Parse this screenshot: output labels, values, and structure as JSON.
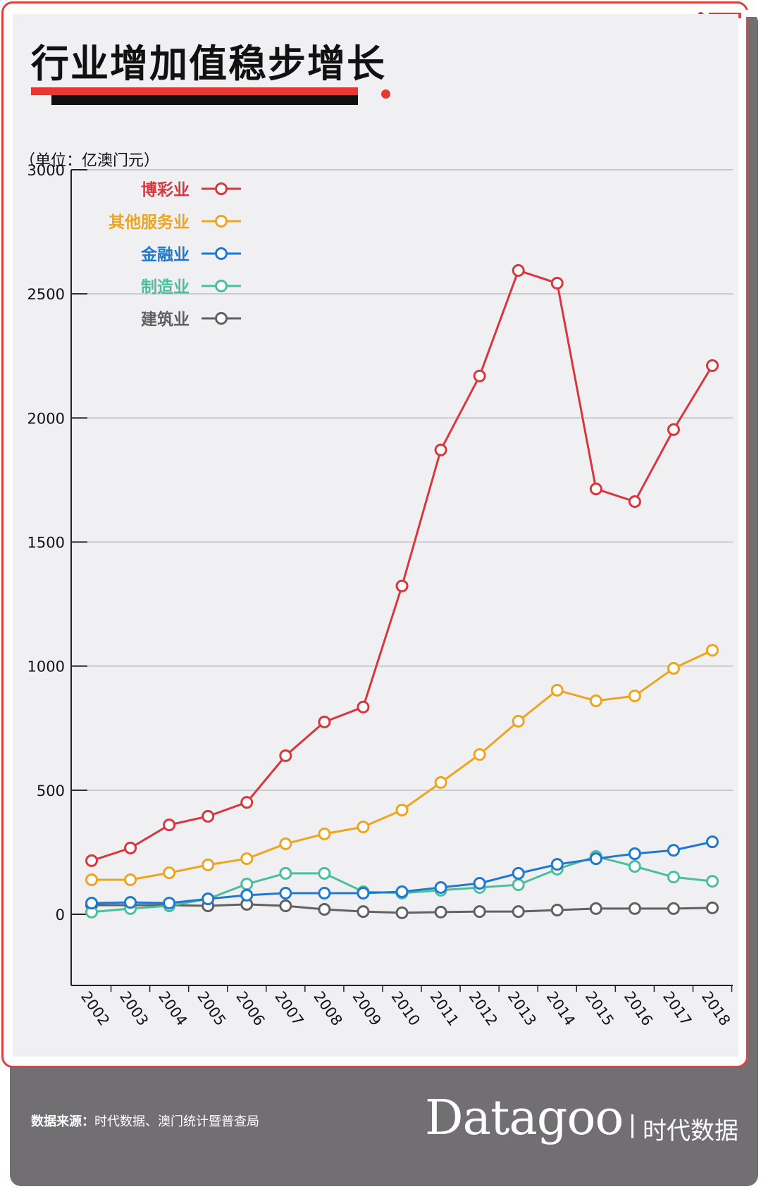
{
  "header": {
    "title": "行业增加值稳步增长",
    "unit_label": "（单位：亿澳门元）"
  },
  "colors": {
    "gambling": "#d9363e",
    "other_services": "#eda51f",
    "finance": "#1f78d1",
    "manufacturing": "#4cbf9a",
    "construction": "#616161",
    "accent": "#e53935",
    "panel_bg": "#f0f0f3",
    "footer_bg": "#716f72"
  },
  "footer": {
    "source_label": "数据来源：",
    "source_text": "时代数据、澳门统计暨普查局",
    "brand_name": "Datagoo",
    "brand_cn": "时代数据"
  },
  "chart_data": {
    "type": "line",
    "title": "行业增加值稳步增长",
    "xlabel": "",
    "ylabel": "（单位：亿澳门元）",
    "ylim": [
      0,
      3000
    ],
    "yticks": [
      0,
      500,
      1000,
      1500,
      2000,
      2500,
      3000
    ],
    "grid": true,
    "legend_position": "top-left",
    "x": [
      "2002",
      "2003",
      "2004",
      "2005",
      "2006",
      "2007",
      "2008",
      "2009",
      "2010",
      "2011",
      "2012",
      "2013",
      "2014",
      "2015",
      "2016",
      "2017",
      "2018"
    ],
    "series": [
      {
        "name": "博彩业",
        "color": "#d9363e",
        "values": [
          216,
          267,
          360,
          395,
          451,
          639,
          775,
          835,
          1323,
          1871,
          2169,
          2594,
          2543,
          1714,
          1663,
          1953,
          2211
        ]
      },
      {
        "name": "其他服务业",
        "color": "#eda51f",
        "values": [
          139,
          139,
          167,
          199,
          224,
          284,
          324,
          352,
          420,
          531,
          644,
          778,
          903,
          860,
          880,
          991,
          1064
        ]
      },
      {
        "name": "金融业",
        "color": "#1f78d1",
        "values": [
          45,
          48,
          45,
          62,
          77,
          85,
          85,
          85,
          91,
          108,
          125,
          165,
          201,
          224,
          244,
          258,
          292
        ]
      },
      {
        "name": "制造业",
        "color": "#4cbf9a",
        "values": [
          9,
          23,
          34,
          62,
          122,
          165,
          165,
          91,
          85,
          97,
          108,
          119,
          182,
          233,
          193,
          150,
          133
        ]
      },
      {
        "name": "建筑业",
        "color": "#616161",
        "values": [
          37,
          37,
          37,
          34,
          40,
          34,
          20,
          11,
          6,
          9,
          11,
          11,
          17,
          23,
          23,
          23,
          26
        ]
      }
    ]
  }
}
